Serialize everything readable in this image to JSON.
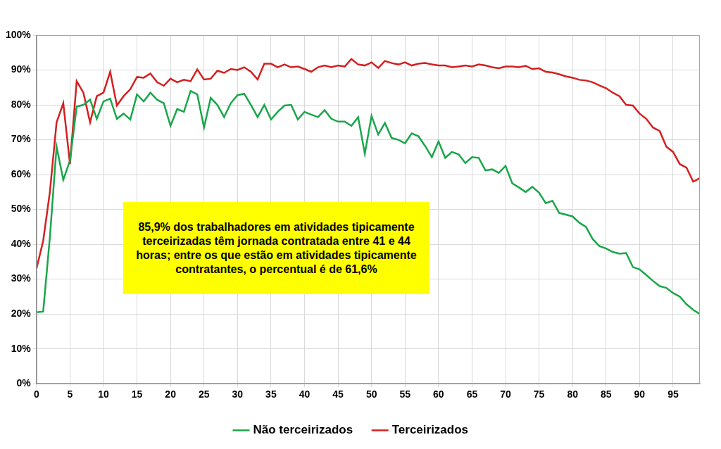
{
  "chart_data": {
    "type": "line",
    "annotation": "85,9% dos trabalhadores em atividades tipicamente terceirizadas têm jornada contratada entre 41 e 44 horas; entre os que estão em atividades tipicamente contratantes, o percentual é de 61,6%",
    "x": [
      0,
      1,
      2,
      3,
      4,
      5,
      6,
      7,
      8,
      9,
      10,
      11,
      12,
      13,
      14,
      15,
      16,
      17,
      18,
      19,
      20,
      21,
      22,
      23,
      24,
      25,
      26,
      27,
      28,
      29,
      30,
      31,
      32,
      33,
      34,
      35,
      36,
      37,
      38,
      39,
      40,
      41,
      42,
      43,
      44,
      45,
      46,
      47,
      48,
      49,
      50,
      51,
      52,
      53,
      54,
      55,
      56,
      57,
      58,
      59,
      60,
      61,
      62,
      63,
      64,
      65,
      66,
      67,
      68,
      69,
      70,
      71,
      72,
      73,
      74,
      75,
      76,
      77,
      78,
      79,
      80,
      81,
      82,
      83,
      84,
      85,
      86,
      87,
      88,
      89,
      90,
      91,
      92,
      93,
      94,
      95,
      96,
      97,
      98,
      99
    ],
    "series": [
      {
        "name": "Não terceirizados",
        "color": "#1aa64a",
        "values": [
          20.5,
          20.7,
          42,
          68,
          58.5,
          64,
          79.5,
          80,
          81.5,
          76,
          81,
          81.8,
          76,
          77.5,
          75.8,
          83,
          81,
          83.5,
          81.5,
          80.5,
          74,
          78.8,
          78,
          84,
          83,
          73.5,
          82,
          80,
          76.5,
          80.5,
          82.8,
          83.2,
          80,
          76.5,
          80,
          75.8,
          78,
          79.8,
          80,
          75.8,
          78,
          77.2,
          76.5,
          78.5,
          76,
          75.2,
          75.2,
          74,
          76.5,
          66,
          76.8,
          71.5,
          74.8,
          70.5,
          70,
          69,
          71.8,
          71,
          68.2,
          65,
          69.5,
          64.8,
          66.5,
          65.8,
          63.3,
          65,
          64.8,
          61.2,
          61.5,
          60.5,
          62.5,
          57.5,
          56.3,
          55,
          56.5,
          54.8,
          51.8,
          52.5,
          49,
          48.5,
          48,
          46.2,
          45,
          41.5,
          39.5,
          38.8,
          37.8,
          37.3,
          37.5,
          33.5,
          32.8,
          31.2,
          29.5,
          28,
          27.5,
          26,
          25,
          22.8,
          21.2,
          20
        ]
      },
      {
        "name": "Terceirizados",
        "color": "#d42020",
        "values": [
          33,
          41,
          55,
          75,
          80.5,
          63,
          86.8,
          83.5,
          75,
          82.5,
          83.5,
          89.5,
          79.8,
          82.5,
          84.5,
          88,
          87.8,
          89,
          86.5,
          85.5,
          87.5,
          86.5,
          87.2,
          86.8,
          90.2,
          87.3,
          87.5,
          89.8,
          89.2,
          90.3,
          90,
          90.8,
          89.5,
          87.3,
          91.8,
          91.8,
          90.8,
          91.6,
          90.8,
          91,
          90.3,
          89.5,
          90.8,
          91.3,
          90.8,
          91.3,
          91,
          93.2,
          91.6,
          91.3,
          92.2,
          90.6,
          92.6,
          92,
          91.6,
          92.2,
          91.3,
          91.8,
          92,
          91.6,
          91.3,
          91.3,
          90.8,
          91,
          91.3,
          91,
          91.6,
          91.3,
          90.8,
          90.5,
          91,
          91,
          90.8,
          91.2,
          90.3,
          90.5,
          89.5,
          89.3,
          88.8,
          88.2,
          87.8,
          87.2,
          87,
          86.5,
          85.6,
          84.8,
          83.5,
          82.5,
          80,
          79.8,
          77.5,
          76,
          73.5,
          72.5,
          68,
          66.5,
          63,
          62,
          58,
          59
        ]
      }
    ],
    "xlim": [
      0,
      99
    ],
    "xticks": [
      0,
      5,
      10,
      15,
      20,
      25,
      30,
      35,
      40,
      45,
      50,
      55,
      60,
      65,
      70,
      75,
      80,
      85,
      90,
      95
    ],
    "ylim": [
      0,
      100
    ],
    "yticks": [
      {
        "value": 0,
        "label": "0%"
      },
      {
        "value": 10,
        "label": "10%"
      },
      {
        "value": 20,
        "label": "20%"
      },
      {
        "value": 30,
        "label": "30%"
      },
      {
        "value": 40,
        "label": "40%"
      },
      {
        "value": 50,
        "label": "50%"
      },
      {
        "value": 60,
        "label": "60%"
      },
      {
        "value": 70,
        "label": "70%"
      },
      {
        "value": 80,
        "label": "80%"
      },
      {
        "value": 90,
        "label": "90%"
      },
      {
        "value": 100,
        "label": "100%"
      }
    ],
    "grid": true,
    "legend": "bottom"
  }
}
